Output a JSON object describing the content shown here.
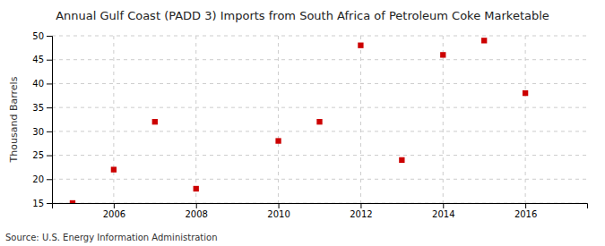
{
  "chart_data": {
    "type": "scatter",
    "title": "Annual Gulf Coast (PADD 3) Imports from South Africa of Petroleum Coke Marketable",
    "ylabel": "Thousand Barrels",
    "annotations": [
      "Source: U.S. Energy Information Administration"
    ],
    "x": [
      2005,
      2006,
      2007,
      2008,
      2010,
      2011,
      2012,
      2013,
      2014,
      2015,
      2016
    ],
    "values": [
      15,
      22,
      32,
      18,
      28,
      32,
      48,
      24,
      46,
      49,
      38
    ],
    "color": "#cc0000",
    "marker": "square",
    "xlim": [
      2004.5,
      2017.5
    ],
    "xticks": [
      2006,
      2008,
      2010,
      2012,
      2014,
      2016
    ],
    "ylim": [
      15,
      50
    ],
    "yticks": [
      15,
      20,
      25,
      30,
      35,
      40,
      45,
      50
    ],
    "grid": true
  }
}
